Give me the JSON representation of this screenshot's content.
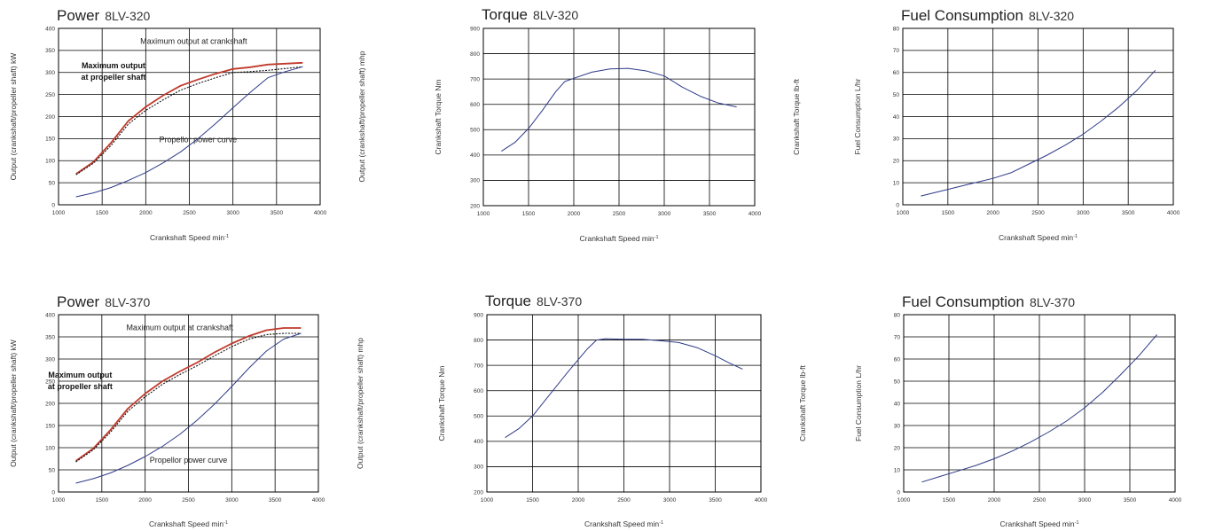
{
  "colors": {
    "crank": "#c0392b",
    "prop_shaft": "#111111",
    "curve": "#2e3a87",
    "grid": "#000000"
  },
  "chart_data": [
    {
      "type": "line",
      "title": "Power",
      "model": "8LV-320",
      "xlabel": "Crankshaft Speed min",
      "xlabel_sup": "-1",
      "ylabel": "Output (crankshaft/propeller shaft) kW",
      "ylabel_right": "Output (crankshaft/propeller shaft) mhp",
      "xlim": [
        1000,
        4000
      ],
      "ylim": [
        0,
        400
      ],
      "xticks": [
        1000,
        1500,
        2000,
        2500,
        3000,
        3500,
        4000
      ],
      "yticks": [
        0,
        50,
        100,
        150,
        200,
        250,
        300,
        350,
        400
      ],
      "annotations": [
        {
          "text": "Maximum output at crankshaft",
          "x": 2550,
          "y": 365,
          "style": "normal"
        },
        {
          "text": "Maximum output",
          "x": 1630,
          "y": 310,
          "style": "bold"
        },
        {
          "text": "at propeller shaft",
          "x": 1630,
          "y": 283,
          "style": "bold"
        },
        {
          "text": "Propellor power curve",
          "x": 2600,
          "y": 142,
          "style": "normal"
        }
      ],
      "series": [
        {
          "name": "",
          "role": "crank",
          "points": [
            [
              1200,
              70
            ],
            [
              1400,
              97
            ],
            [
              1600,
              140
            ],
            [
              1800,
              190
            ],
            [
              2000,
              222
            ],
            [
              2200,
              248
            ],
            [
              2400,
              270
            ],
            [
              2600,
              284
            ],
            [
              2800,
              297
            ],
            [
              3000,
              308
            ],
            [
              3200,
              312
            ],
            [
              3400,
              318
            ],
            [
              3800,
              322
            ]
          ]
        },
        {
          "name": "",
          "role": "prop_shaft",
          "points": [
            [
              1200,
              68
            ],
            [
              1400,
              94
            ],
            [
              1600,
              134
            ],
            [
              1800,
              183
            ],
            [
              2000,
              214
            ],
            [
              2200,
              238
            ],
            [
              2400,
              260
            ],
            [
              2600,
              275
            ],
            [
              2800,
              288
            ],
            [
              3000,
              300
            ],
            [
              3200,
              302
            ],
            [
              3400,
              305
            ],
            [
              3800,
              313
            ]
          ]
        },
        {
          "name": "",
          "role": "curve",
          "points": [
            [
              1200,
              18
            ],
            [
              1400,
              27
            ],
            [
              1600,
              39
            ],
            [
              1800,
              55
            ],
            [
              2000,
              73
            ],
            [
              2200,
              95
            ],
            [
              2400,
              120
            ],
            [
              2600,
              150
            ],
            [
              2800,
              184
            ],
            [
              3000,
              220
            ],
            [
              3200,
              255
            ],
            [
              3400,
              288
            ],
            [
              3600,
              302
            ],
            [
              3800,
              313
            ]
          ]
        }
      ]
    },
    {
      "type": "line",
      "title": "Torque",
      "model": "8LV-320",
      "xlabel": "Crankshaft Speed min",
      "xlabel_sup": "-1",
      "ylabel": "Crankshaft Torque  Nm",
      "ylabel_right": "Crankshaft Torque  lb-ft",
      "xlim": [
        1000,
        4000
      ],
      "ylim": [
        200,
        900
      ],
      "xticks": [
        1000,
        1500,
        2000,
        2500,
        3000,
        3500,
        4000
      ],
      "yticks": [
        200,
        300,
        400,
        500,
        600,
        700,
        800,
        900
      ],
      "annotations": [],
      "series": [
        {
          "name": "",
          "role": "curve",
          "points": [
            [
              1200,
              415
            ],
            [
              1350,
              450
            ],
            [
              1500,
              505
            ],
            [
              1650,
              575
            ],
            [
              1800,
              650
            ],
            [
              1900,
              690
            ],
            [
              2000,
              703
            ],
            [
              2200,
              727
            ],
            [
              2400,
              740
            ],
            [
              2600,
              742
            ],
            [
              2800,
              732
            ],
            [
              3000,
              712
            ],
            [
              3200,
              668
            ],
            [
              3400,
              632
            ],
            [
              3600,
              605
            ],
            [
              3800,
              590
            ]
          ]
        }
      ]
    },
    {
      "type": "line",
      "title": "Fuel Consumption",
      "model": "8LV-320",
      "xlabel": "Crankshaft Speed min",
      "xlabel_sup": "-1",
      "ylabel": "Fuel Consumption L/hr",
      "ylabel_right": "Fuel Consumption gal/hr",
      "xlim": [
        1000,
        4000
      ],
      "ylim": [
        0,
        80
      ],
      "xticks": [
        1000,
        1500,
        2000,
        2500,
        3000,
        3500,
        4000
      ],
      "yticks": [
        0,
        10,
        20,
        30,
        40,
        50,
        60,
        70,
        80
      ],
      "annotations": [],
      "series": [
        {
          "name": "",
          "role": "curve",
          "points": [
            [
              1200,
              4
            ],
            [
              1400,
              6
            ],
            [
              1600,
              8
            ],
            [
              1800,
              10
            ],
            [
              2000,
              12
            ],
            [
              2200,
              14.5
            ],
            [
              2400,
              18.5
            ],
            [
              2600,
              22.5
            ],
            [
              2800,
              27
            ],
            [
              3000,
              32
            ],
            [
              3200,
              38
            ],
            [
              3400,
              44.5
            ],
            [
              3600,
              52
            ],
            [
              3800,
              61
            ]
          ]
        }
      ]
    },
    {
      "type": "line",
      "title": "Power",
      "model": "8LV-370",
      "xlabel": "Crankshaft Speed min",
      "xlabel_sup": "-1",
      "ylabel": "Output (crankshaft/propeller shaft) kW",
      "ylabel_right": "Output (crankshaft/propeller shaft) mhp",
      "xlim": [
        1000,
        4000
      ],
      "ylim": [
        0,
        400
      ],
      "xticks": [
        1000,
        1500,
        2000,
        2500,
        3000,
        3500,
        4000
      ],
      "yticks": [
        0,
        50,
        100,
        150,
        200,
        250,
        300,
        350,
        400
      ],
      "annotations": [
        {
          "text": "Maximum output at crankshaft",
          "x": 2400,
          "y": 365,
          "style": "normal"
        },
        {
          "text": "Maximum output",
          "x": 1250,
          "y": 258,
          "style": "bold"
        },
        {
          "text": "at propeller shaft",
          "x": 1250,
          "y": 232,
          "style": "bold"
        },
        {
          "text": "Propellor power curve",
          "x": 2500,
          "y": 66,
          "style": "normal"
        }
      ],
      "series": [
        {
          "name": "",
          "role": "crank",
          "points": [
            [
              1200,
              70
            ],
            [
              1400,
              98
            ],
            [
              1600,
              140
            ],
            [
              1800,
              188
            ],
            [
              2000,
              222
            ],
            [
              2200,
              250
            ],
            [
              2400,
              272
            ],
            [
              2600,
              292
            ],
            [
              2800,
              315
            ],
            [
              3000,
              335
            ],
            [
              3200,
              352
            ],
            [
              3400,
              365
            ],
            [
              3600,
              370
            ],
            [
              3800,
              370
            ]
          ]
        },
        {
          "name": "",
          "role": "prop_shaft",
          "points": [
            [
              1200,
              68
            ],
            [
              1400,
              95
            ],
            [
              1600,
              135
            ],
            [
              1800,
              182
            ],
            [
              2000,
              215
            ],
            [
              2200,
              243
            ],
            [
              2400,
              265
            ],
            [
              2600,
              285
            ],
            [
              2800,
              307
            ],
            [
              3000,
              328
            ],
            [
              3200,
              345
            ],
            [
              3400,
              355
            ],
            [
              3600,
              358
            ],
            [
              3800,
              358
            ]
          ]
        },
        {
          "name": "",
          "role": "curve",
          "points": [
            [
              1200,
              20
            ],
            [
              1400,
              30
            ],
            [
              1600,
              43
            ],
            [
              1800,
              60
            ],
            [
              2000,
              80
            ],
            [
              2200,
              103
            ],
            [
              2400,
              130
            ],
            [
              2600,
              162
            ],
            [
              2800,
              198
            ],
            [
              3000,
              238
            ],
            [
              3200,
              280
            ],
            [
              3400,
              318
            ],
            [
              3600,
              345
            ],
            [
              3800,
              358
            ]
          ]
        }
      ]
    },
    {
      "type": "line",
      "title": "Torque",
      "model": "8LV-370",
      "xlabel": "Crankshaft Speed min",
      "xlabel_sup": "-1",
      "ylabel": "Crankshaft Torque  Nm",
      "ylabel_right": "Crankshaft Torque  lb-ft",
      "xlim": [
        1000,
        4000
      ],
      "ylim": [
        200,
        900
      ],
      "xticks": [
        1000,
        1500,
        2000,
        2500,
        3000,
        3500,
        4000
      ],
      "yticks": [
        200,
        300,
        400,
        500,
        600,
        700,
        800,
        900
      ],
      "annotations": [],
      "series": [
        {
          "name": "",
          "role": "curve",
          "points": [
            [
              1200,
              415
            ],
            [
              1350,
              450
            ],
            [
              1500,
              500
            ],
            [
              1700,
              590
            ],
            [
              1900,
              680
            ],
            [
              2100,
              765
            ],
            [
              2200,
              800
            ],
            [
              2300,
              805
            ],
            [
              2500,
              803
            ],
            [
              2700,
              803
            ],
            [
              2900,
              797
            ],
            [
              3100,
              790
            ],
            [
              3300,
              770
            ],
            [
              3500,
              738
            ],
            [
              3650,
              710
            ],
            [
              3800,
              685
            ]
          ]
        }
      ]
    },
    {
      "type": "line",
      "title": "Fuel Consumption",
      "model": "8LV-370",
      "xlabel": "Crankshaft Speed min",
      "xlabel_sup": "-1",
      "ylabel": "Fuel Consumption L/hr",
      "ylabel_right": "Fuel Consumption gal/hr",
      "xlim": [
        1000,
        4000
      ],
      "ylim": [
        0,
        80
      ],
      "xticks": [
        1000,
        1500,
        2000,
        2500,
        3000,
        3500,
        4000
      ],
      "yticks": [
        0,
        10,
        20,
        30,
        40,
        50,
        60,
        70,
        80
      ],
      "annotations": [],
      "series": [
        {
          "name": "",
          "role": "curve",
          "points": [
            [
              1200,
              4.5
            ],
            [
              1400,
              7
            ],
            [
              1600,
              9.5
            ],
            [
              1800,
              12
            ],
            [
              2000,
              15
            ],
            [
              2200,
              18.5
            ],
            [
              2400,
              22.5
            ],
            [
              2600,
              27
            ],
            [
              2800,
              32
            ],
            [
              3000,
              38
            ],
            [
              3200,
              45
            ],
            [
              3400,
              53
            ],
            [
              3600,
              61.5
            ],
            [
              3800,
              71
            ]
          ]
        }
      ]
    }
  ]
}
